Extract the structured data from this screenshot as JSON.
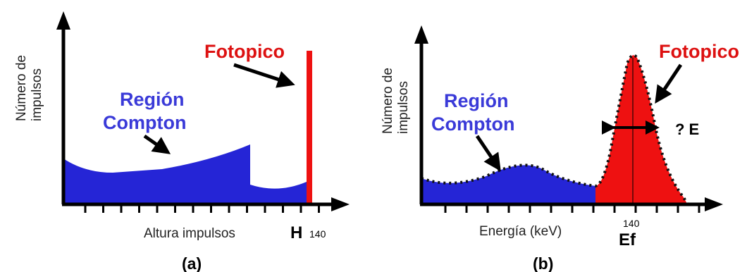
{
  "colors": {
    "compton_fill": "#2525d6",
    "compton_text": "#3a3ad8",
    "photopeak_fill": "#ee1111",
    "photopeak_text": "#dd1111",
    "axis": "#000000"
  },
  "panel_a": {
    "ylabel_line1": "Número de",
    "ylabel_line2": "impulsos",
    "xlabel": "Altura impulsos",
    "photopeak_label": "Fotopico",
    "compton_label_line1": "Región",
    "compton_label_line2": "Compton",
    "h_label": "H",
    "h_value": "140",
    "caption": "(a)"
  },
  "panel_b": {
    "ylabel_line1": "Número de",
    "ylabel_line2": "impulsos",
    "xlabel": "Energía (keV)",
    "photopeak_label": "Fotopico",
    "compton_label_line1": "Región",
    "compton_label_line2": "Compton",
    "width_label": "? E",
    "peak_value": "140",
    "peak_symbol": "Ef",
    "caption": "(b)"
  }
}
